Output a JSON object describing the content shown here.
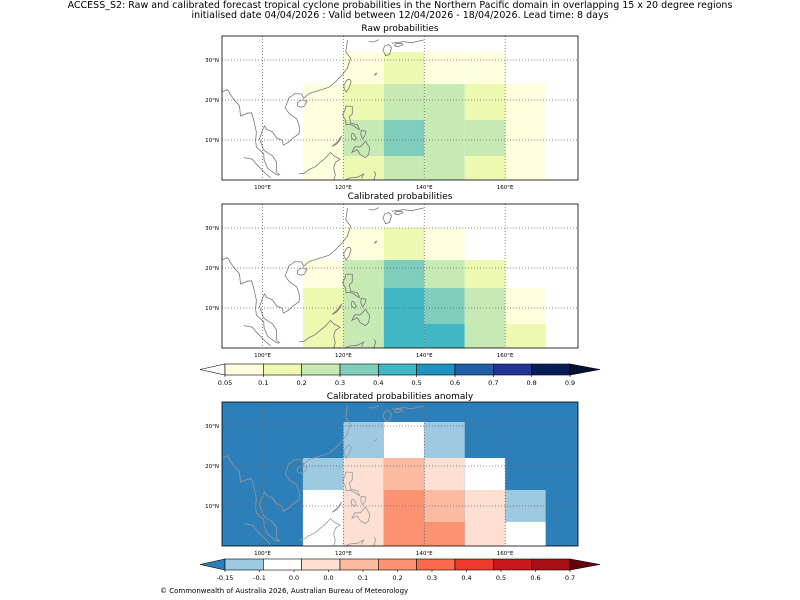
{
  "header": {
    "line1": "ACCESS_S2: Raw and calibrated forecast tropical cyclone probabilities in the Northern Pacific domain in overlapping 15 x 20 degree regions",
    "line2": "initialised date 04/04/2026 :  Valid between 12/04/2026 - 18/04/2026. Lead time: 8 days"
  },
  "footer": {
    "credit": "© Commonwealth of Australia 2026, Australian Bureau of Meteorology"
  },
  "colors": {
    "prob_scale": [
      "#ffffe0",
      "#edf8b1",
      "#c7e9b4",
      "#7fcdbb",
      "#41b6c4",
      "#1d91c0",
      "#225ea8",
      "#253494",
      "#081d58"
    ],
    "anom_scale": [
      "#2c7fb8",
      "#9ecae1",
      "#ffffff",
      "#fee0d2",
      "#fcbba1",
      "#fc9272",
      "#fb6a4a",
      "#ef3b2c",
      "#cb181d",
      "#a50f15",
      "#67000d"
    ],
    "grid": "#666666",
    "coast": "#777777"
  },
  "chart_data": [
    {
      "type": "heatmap",
      "title": "Raw probabilities",
      "xlim": [
        90,
        178
      ],
      "ylim": [
        0,
        36
      ],
      "xticks": [
        "100°E",
        "120°E",
        "140°E",
        "160°E"
      ],
      "yticks": [
        "10°N",
        "20°N",
        "30°N"
      ],
      "cells": [
        {
          "lon0": 120,
          "lon1": 130,
          "lat0": 24,
          "lat1": 32,
          "level": 0
        },
        {
          "lon0": 130,
          "lon1": 140,
          "lat0": 24,
          "lat1": 32,
          "level": 1
        },
        {
          "lon0": 140,
          "lon1": 150,
          "lat0": 24,
          "lat1": 32,
          "level": 0
        },
        {
          "lon0": 150,
          "lon1": 160,
          "lat0": 24,
          "lat1": 32,
          "level": 0
        },
        {
          "lon0": 110,
          "lon1": 120,
          "lat0": 15,
          "lat1": 24,
          "level": 0
        },
        {
          "lon0": 120,
          "lon1": 130,
          "lat0": 15,
          "lat1": 24,
          "level": 1
        },
        {
          "lon0": 130,
          "lon1": 140,
          "lat0": 15,
          "lat1": 24,
          "level": 2
        },
        {
          "lon0": 140,
          "lon1": 150,
          "lat0": 15,
          "lat1": 24,
          "level": 2
        },
        {
          "lon0": 150,
          "lon1": 160,
          "lat0": 15,
          "lat1": 24,
          "level": 1
        },
        {
          "lon0": 160,
          "lon1": 170,
          "lat0": 15,
          "lat1": 24,
          "level": 0
        },
        {
          "lon0": 110,
          "lon1": 120,
          "lat0": 6,
          "lat1": 15,
          "level": 0
        },
        {
          "lon0": 120,
          "lon1": 130,
          "lat0": 6,
          "lat1": 15,
          "level": 2
        },
        {
          "lon0": 130,
          "lon1": 140,
          "lat0": 6,
          "lat1": 15,
          "level": 3
        },
        {
          "lon0": 140,
          "lon1": 150,
          "lat0": 6,
          "lat1": 15,
          "level": 2
        },
        {
          "lon0": 150,
          "lon1": 160,
          "lat0": 6,
          "lat1": 15,
          "level": 2
        },
        {
          "lon0": 160,
          "lon1": 170,
          "lat0": 6,
          "lat1": 15,
          "level": 0
        },
        {
          "lon0": 110,
          "lon1": 120,
          "lat0": 0,
          "lat1": 6,
          "level": 0
        },
        {
          "lon0": 120,
          "lon1": 130,
          "lat0": 0,
          "lat1": 6,
          "level": 1
        },
        {
          "lon0": 130,
          "lon1": 140,
          "lat0": 0,
          "lat1": 6,
          "level": 2
        },
        {
          "lon0": 140,
          "lon1": 150,
          "lat0": 0,
          "lat1": 6,
          "level": 2
        },
        {
          "lon0": 150,
          "lon1": 160,
          "lat0": 0,
          "lat1": 6,
          "level": 1
        },
        {
          "lon0": 160,
          "lon1": 170,
          "lat0": 0,
          "lat1": 6,
          "level": 0
        }
      ]
    },
    {
      "type": "heatmap",
      "title": "Calibrated probabilities",
      "xlim": [
        90,
        178
      ],
      "ylim": [
        0,
        36
      ],
      "xticks": [
        "100°E",
        "120°E",
        "140°E",
        "160°E"
      ],
      "yticks": [
        "10°N",
        "20°N",
        "30°N"
      ],
      "cells": [
        {
          "lon0": 120,
          "lon1": 130,
          "lat0": 22,
          "lat1": 30,
          "level": 0
        },
        {
          "lon0": 130,
          "lon1": 140,
          "lat0": 22,
          "lat1": 30,
          "level": 1
        },
        {
          "lon0": 140,
          "lon1": 150,
          "lat0": 22,
          "lat1": 30,
          "level": 0
        },
        {
          "lon0": 110,
          "lon1": 120,
          "lat0": 15,
          "lat1": 22,
          "level": 0
        },
        {
          "lon0": 120,
          "lon1": 130,
          "lat0": 15,
          "lat1": 22,
          "level": 2
        },
        {
          "lon0": 130,
          "lon1": 140,
          "lat0": 15,
          "lat1": 22,
          "level": 3
        },
        {
          "lon0": 140,
          "lon1": 150,
          "lat0": 15,
          "lat1": 22,
          "level": 2
        },
        {
          "lon0": 150,
          "lon1": 160,
          "lat0": 15,
          "lat1": 22,
          "level": 1
        },
        {
          "lon0": 110,
          "lon1": 120,
          "lat0": 6,
          "lat1": 15,
          "level": 1
        },
        {
          "lon0": 120,
          "lon1": 130,
          "lat0": 6,
          "lat1": 15,
          "level": 2
        },
        {
          "lon0": 130,
          "lon1": 140,
          "lat0": 6,
          "lat1": 15,
          "level": 4
        },
        {
          "lon0": 140,
          "lon1": 150,
          "lat0": 6,
          "lat1": 15,
          "level": 3
        },
        {
          "lon0": 150,
          "lon1": 160,
          "lat0": 6,
          "lat1": 15,
          "level": 2
        },
        {
          "lon0": 160,
          "lon1": 170,
          "lat0": 6,
          "lat1": 15,
          "level": 0
        },
        {
          "lon0": 110,
          "lon1": 120,
          "lat0": 0,
          "lat1": 6,
          "level": 1
        },
        {
          "lon0": 120,
          "lon1": 130,
          "lat0": 0,
          "lat1": 6,
          "level": 2
        },
        {
          "lon0": 130,
          "lon1": 140,
          "lat0": 0,
          "lat1": 6,
          "level": 4
        },
        {
          "lon0": 140,
          "lon1": 150,
          "lat0": 0,
          "lat1": 6,
          "level": 4
        },
        {
          "lon0": 150,
          "lon1": 160,
          "lat0": 0,
          "lat1": 6,
          "level": 2
        },
        {
          "lon0": 160,
          "lon1": 170,
          "lat0": 0,
          "lat1": 6,
          "level": 1
        }
      ]
    },
    {
      "type": "heatmap",
      "title": "Calibrated probabilities anomaly",
      "xlim": [
        90,
        178
      ],
      "ylim": [
        0,
        36
      ],
      "background_level": 0,
      "xticks": [
        "100°E",
        "120°E",
        "140°E",
        "160°E"
      ],
      "yticks": [
        "10°N",
        "20°N",
        "30°N"
      ],
      "cells": [
        {
          "lon0": 120,
          "lon1": 130,
          "lat0": 22,
          "lat1": 31,
          "level": 1
        },
        {
          "lon0": 130,
          "lon1": 140,
          "lat0": 22,
          "lat1": 31,
          "level": 2
        },
        {
          "lon0": 140,
          "lon1": 150,
          "lat0": 22,
          "lat1": 31,
          "level": 1
        },
        {
          "lon0": 110,
          "lon1": 120,
          "lat0": 14,
          "lat1": 22,
          "level": 1
        },
        {
          "lon0": 120,
          "lon1": 130,
          "lat0": 14,
          "lat1": 22,
          "level": 3
        },
        {
          "lon0": 130,
          "lon1": 140,
          "lat0": 14,
          "lat1": 22,
          "level": 4
        },
        {
          "lon0": 140,
          "lon1": 150,
          "lat0": 14,
          "lat1": 22,
          "level": 3
        },
        {
          "lon0": 150,
          "lon1": 160,
          "lat0": 14,
          "lat1": 22,
          "level": 2
        },
        {
          "lon0": 110,
          "lon1": 120,
          "lat0": 0,
          "lat1": 14,
          "level": 2
        },
        {
          "lon0": 120,
          "lon1": 130,
          "lat0": 0,
          "lat1": 14,
          "level": 3
        },
        {
          "lon0": 130,
          "lon1": 140,
          "lat0": 6,
          "lat1": 14,
          "level": 5
        },
        {
          "lon0": 140,
          "lon1": 150,
          "lat0": 6,
          "lat1": 14,
          "level": 4
        },
        {
          "lon0": 150,
          "lon1": 160,
          "lat0": 6,
          "lat1": 14,
          "level": 3
        },
        {
          "lon0": 160,
          "lon1": 170,
          "lat0": 6,
          "lat1": 14,
          "level": 1
        },
        {
          "lon0": 130,
          "lon1": 140,
          "lat0": 0,
          "lat1": 6,
          "level": 5
        },
        {
          "lon0": 140,
          "lon1": 150,
          "lat0": 0,
          "lat1": 6,
          "level": 5
        },
        {
          "lon0": 150,
          "lon1": 160,
          "lat0": 0,
          "lat1": 6,
          "level": 3
        },
        {
          "lon0": 160,
          "lon1": 170,
          "lat0": 0,
          "lat1": 6,
          "level": 2
        }
      ]
    }
  ],
  "colorbar_prob": {
    "ticks": [
      "0.05",
      "0.1",
      "0.2",
      "0.3",
      "0.4",
      "0.5",
      "0.6",
      "0.7",
      "0.8",
      "0.9"
    ]
  },
  "colorbar_anom": {
    "ticks": [
      "-0.15",
      "-0.1",
      "0.0",
      "0.0",
      "0.1",
      "0.2",
      "0.3",
      "0.4",
      "0.5",
      "0.6",
      "0.7"
    ]
  }
}
